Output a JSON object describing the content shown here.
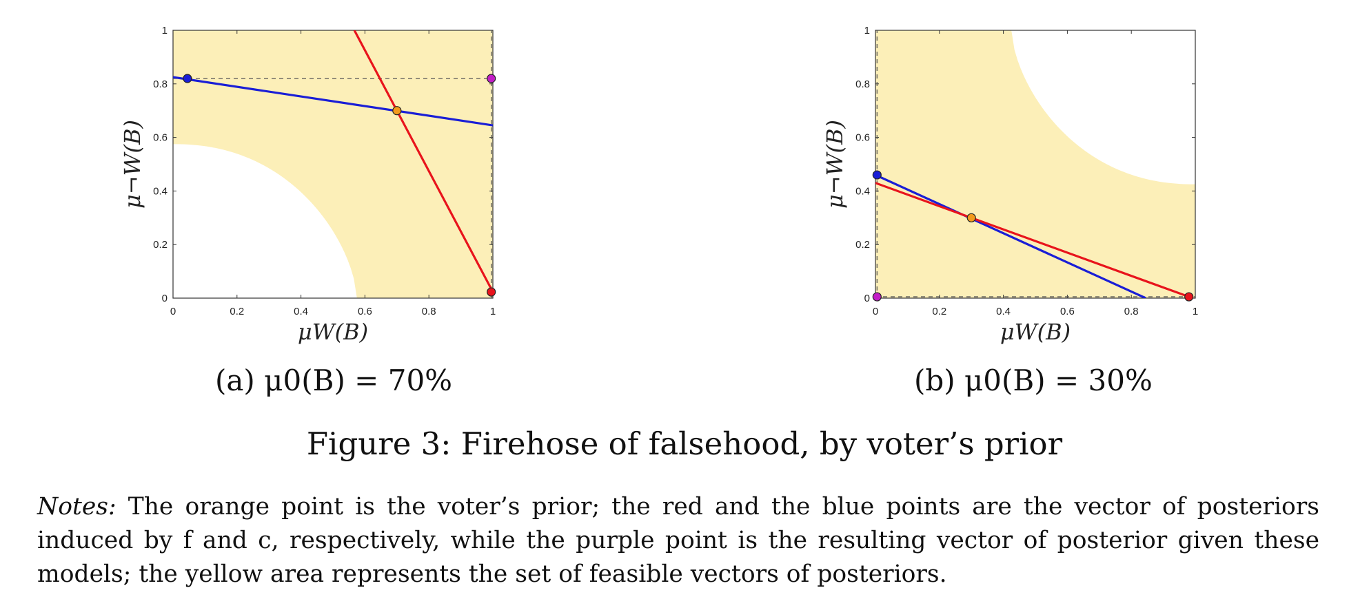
{
  "figure": {
    "caption": "Figure 3: Firehose of falsehood, by voter’s prior",
    "notes_lead": "Notes:",
    "notes_text": " The orange point is the voter’s prior; the red and the blue points are the vector of posteriors induced by f and c, respectively, while the purple point is the resulting vector of posterior given these models; the yellow area represents the set of feasible vectors of posteriors."
  },
  "colors": {
    "feasible": "#fcefb8",
    "red": "#e8141c",
    "blue": "#1a1ed6",
    "orange": "#f39a1d",
    "purple": "#c21ec6",
    "dashed": "#555555"
  },
  "chart_data": [
    {
      "type": "line",
      "subcaption_prefix": "(a) ",
      "subcaption_formula": "μ0(B) = 70%",
      "xlabel": "μW(B)",
      "ylabel": "μ¬W(B)",
      "xlim": [
        0,
        1
      ],
      "ylim": [
        0,
        1
      ],
      "x_ticks": [
        "0",
        "0.2",
        "0.4",
        "0.6",
        "0.8",
        "1"
      ],
      "y_ticks": [
        "0",
        "0.2",
        "0.4",
        "0.6",
        "0.8",
        "1"
      ],
      "prior": 0.7,
      "feasible_region": "yellow area outside lower-left boundary curve",
      "series": [
        {
          "color": "blue",
          "x": [
            0,
            1
          ],
          "y": [
            0.825,
            0.645
          ]
        },
        {
          "color": "red",
          "x": [
            0.567,
            1
          ],
          "y": [
            1,
            0.023
          ]
        }
      ],
      "points": [
        {
          "color": "orange",
          "x": 0.7,
          "y": 0.7
        },
        {
          "color": "blue",
          "x": 0.045,
          "y": 0.82
        },
        {
          "color": "red",
          "x": 0.995,
          "y": 0.023
        },
        {
          "color": "purple",
          "x": 0.995,
          "y": 0.82
        }
      ],
      "dashed_lines": [
        {
          "x": [
            0,
            1
          ],
          "y": [
            0.82,
            0.82
          ]
        },
        {
          "x": [
            0.995,
            0.995
          ],
          "y": [
            0,
            1
          ]
        }
      ]
    },
    {
      "type": "line",
      "subcaption_prefix": "(b) ",
      "subcaption_formula": "μ0(B) = 30%",
      "xlabel": "μW(B)",
      "ylabel": "μ¬W(B)",
      "xlim": [
        0,
        1
      ],
      "ylim": [
        0,
        1
      ],
      "x_ticks": [
        "0",
        "0.2",
        "0.4",
        "0.6",
        "0.8",
        "1"
      ],
      "y_ticks": [
        "0",
        "0.2",
        "0.4",
        "0.6",
        "0.8",
        "1"
      ],
      "prior": 0.3,
      "feasible_region": "yellow area outside upper-right boundary curve",
      "series": [
        {
          "color": "blue",
          "x": [
            0,
            0.845
          ],
          "y": [
            0.46,
            0
          ]
        },
        {
          "color": "red",
          "x": [
            0,
            0.98
          ],
          "y": [
            0.43,
            0.005
          ]
        }
      ],
      "points": [
        {
          "color": "orange",
          "x": 0.3,
          "y": 0.3
        },
        {
          "color": "blue",
          "x": 0.005,
          "y": 0.46
        },
        {
          "color": "red",
          "x": 0.98,
          "y": 0.005
        },
        {
          "color": "purple",
          "x": 0.005,
          "y": 0.005
        }
      ],
      "dashed_lines": [
        {
          "x": [
            0,
            1
          ],
          "y": [
            0.005,
            0.005
          ]
        },
        {
          "x": [
            0.005,
            0.005
          ],
          "y": [
            0,
            1
          ]
        }
      ]
    }
  ]
}
